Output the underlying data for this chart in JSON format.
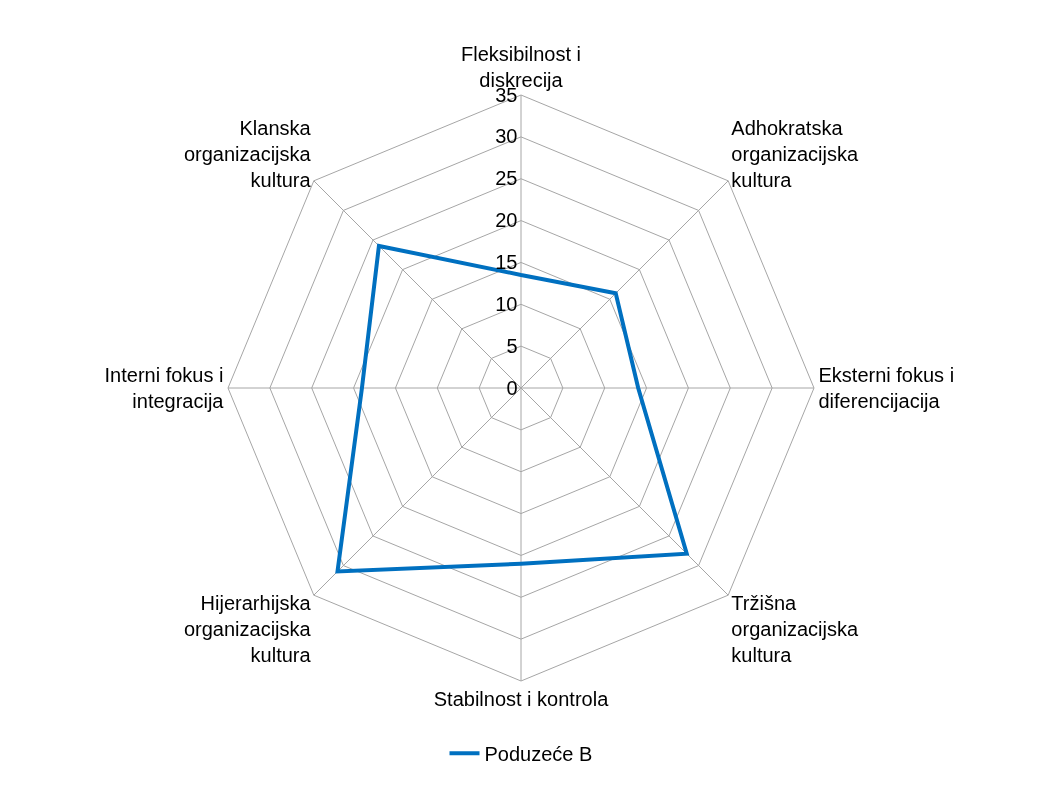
{
  "chart_data": {
    "type": "radar",
    "categories": [
      "Fleksibilnost i diskrecija",
      "Adhokratska organizacijska kultura",
      "Eksterni fokus i diferencijacija",
      "Tržišna organizacijska kultura",
      "Stabilnost i kontrola",
      "Hijerarhijska organizacijska kultura",
      "Interni fokus i integracija",
      "Klanska organizacijska kultura"
    ],
    "series": [
      {
        "name": "Poduzeće B",
        "color": "#0070c0",
        "values": [
          13.5,
          16,
          14,
          28,
          21,
          31,
          19,
          24
        ]
      }
    ],
    "ylim": [
      0,
      35
    ],
    "yticks": [
      0,
      5,
      10,
      15,
      20,
      25,
      30,
      35
    ],
    "grid": true,
    "legend": "bottom",
    "marker": "none",
    "line_style": "solid"
  }
}
